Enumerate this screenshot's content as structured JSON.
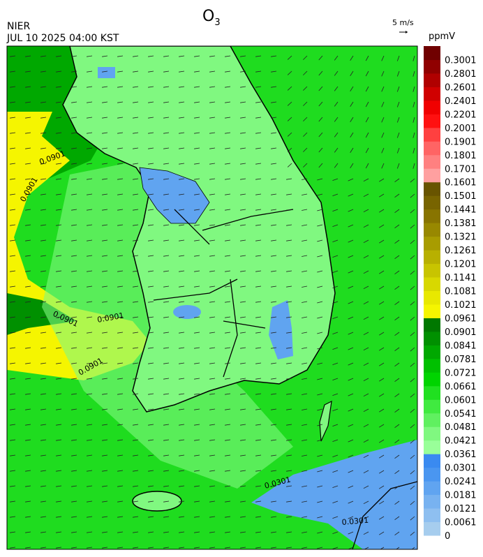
{
  "header": {
    "title": {
      "text": "O",
      "subscript": "3"
    },
    "agency": "NIER",
    "datetime": "JUL 10 2025 04:00 KST",
    "vector_scale": "5 m/s"
  },
  "colorbar": {
    "unit": "ppmV",
    "levels": [
      0,
      0.0061,
      0.0121,
      0.0181,
      0.0241,
      0.0301,
      0.0361,
      0.0421,
      0.0481,
      0.0541,
      0.0601,
      0.0661,
      0.0721,
      0.0781,
      0.0841,
      0.0901,
      0.0961,
      0.1021,
      0.1081,
      0.1141,
      0.1201,
      0.1261,
      0.1321,
      0.1381,
      0.1441,
      0.1501,
      0.1601,
      0.1701,
      0.1801,
      0.1901,
      0.2001,
      0.2201,
      0.2401,
      0.2601,
      0.2801,
      0.3001
    ],
    "colors": [
      "#a6cdee",
      "#8ebff0",
      "#78b2f0",
      "#60a4f0",
      "#4a96f0",
      "#3a8af0",
      "#99ff99",
      "#80f880",
      "#60f060",
      "#40ea40",
      "#20e020",
      "#00d400",
      "#00c000",
      "#00a800",
      "#009000",
      "#007800",
      "#f5f500",
      "#e8e800",
      "#d8d800",
      "#c8c400",
      "#b8b000",
      "#a89c00",
      "#988800",
      "#887400",
      "#786400",
      "#685400",
      "#ffa0a0",
      "#ff8080",
      "#ff6464",
      "#ff4040",
      "#ff1010",
      "#f00000",
      "#d00000",
      "#b00000",
      "#900000",
      "#700000"
    ]
  },
  "map": {
    "contour_labels": [
      "0.0901",
      "0.0901",
      "0.0901",
      "0.0901",
      "0.0901",
      "0.0301",
      "0.0301"
    ]
  }
}
